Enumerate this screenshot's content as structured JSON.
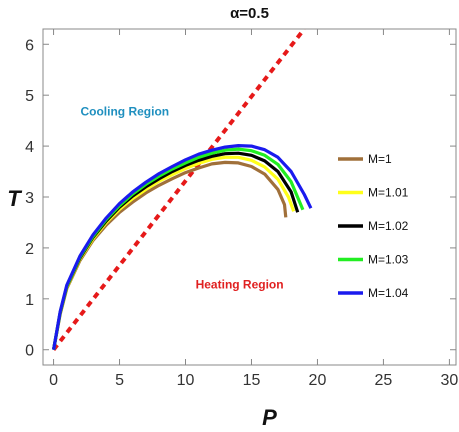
{
  "chart_data": {
    "type": "line",
    "title": "α=0.5",
    "xlabel": "P",
    "ylabel": "T",
    "xlim": [
      -0.8,
      30.5
    ],
    "ylim": [
      -0.3,
      6.3
    ],
    "xticks": [
      0,
      5,
      10,
      15,
      20,
      25,
      30
    ],
    "yticks": [
      0,
      1,
      2,
      3,
      4,
      5,
      6
    ],
    "grid": false,
    "legend_position": "right",
    "annotations": [
      {
        "text": "Cooling Region",
        "color": "#1f8fbf",
        "x": 5.4,
        "y": 4.6
      },
      {
        "text": "Heating Region",
        "color": "#e02020",
        "x": 14.1,
        "y": 1.2
      }
    ],
    "inversion_line": {
      "color": "#e61919",
      "style": "dashed",
      "points": [
        [
          0,
          0
        ],
        [
          19.0,
          6.3
        ]
      ]
    },
    "series": [
      {
        "name": "M=1",
        "color": "#a0703a",
        "points": [
          [
            0,
            0
          ],
          [
            0.5,
            0.7
          ],
          [
            1,
            1.2
          ],
          [
            2,
            1.75
          ],
          [
            3,
            2.15
          ],
          [
            4,
            2.45
          ],
          [
            5,
            2.7
          ],
          [
            6,
            2.9
          ],
          [
            7,
            3.08
          ],
          [
            8,
            3.23
          ],
          [
            9,
            3.36
          ],
          [
            10,
            3.48
          ],
          [
            11,
            3.57
          ],
          [
            12,
            3.65
          ],
          [
            13,
            3.68
          ],
          [
            14,
            3.67
          ],
          [
            15,
            3.6
          ],
          [
            16,
            3.45
          ],
          [
            17,
            3.15
          ],
          [
            17.5,
            2.85
          ],
          [
            17.6,
            2.6
          ]
        ]
      },
      {
        "name": "M=1.01",
        "color": "#ffff1a",
        "points": [
          [
            0,
            0
          ],
          [
            0.5,
            0.72
          ],
          [
            1,
            1.22
          ],
          [
            2,
            1.78
          ],
          [
            3,
            2.18
          ],
          [
            4,
            2.5
          ],
          [
            5,
            2.76
          ],
          [
            6,
            2.97
          ],
          [
            7,
            3.15
          ],
          [
            8,
            3.31
          ],
          [
            9,
            3.44
          ],
          [
            10,
            3.56
          ],
          [
            11,
            3.66
          ],
          [
            12,
            3.74
          ],
          [
            13,
            3.78
          ],
          [
            14,
            3.78
          ],
          [
            15,
            3.72
          ],
          [
            16,
            3.59
          ],
          [
            17,
            3.35
          ],
          [
            17.8,
            3.0
          ],
          [
            18.2,
            2.72
          ]
        ]
      },
      {
        "name": "M=1.02",
        "color": "#000000",
        "points": [
          [
            0,
            0
          ],
          [
            0.5,
            0.73
          ],
          [
            1,
            1.24
          ],
          [
            2,
            1.8
          ],
          [
            3,
            2.21
          ],
          [
            4,
            2.53
          ],
          [
            5,
            2.8
          ],
          [
            6,
            3.02
          ],
          [
            7,
            3.2
          ],
          [
            8,
            3.36
          ],
          [
            9,
            3.5
          ],
          [
            10,
            3.62
          ],
          [
            11,
            3.72
          ],
          [
            12,
            3.8
          ],
          [
            13,
            3.85
          ],
          [
            14,
            3.86
          ],
          [
            15,
            3.82
          ],
          [
            16,
            3.71
          ],
          [
            17,
            3.5
          ],
          [
            18,
            3.1
          ],
          [
            18.5,
            2.7
          ]
        ]
      },
      {
        "name": "M=1.03",
        "color": "#22ee22",
        "points": [
          [
            0,
            0
          ],
          [
            0.5,
            0.74
          ],
          [
            1,
            1.25
          ],
          [
            2,
            1.82
          ],
          [
            3,
            2.23
          ],
          [
            4,
            2.56
          ],
          [
            5,
            2.83
          ],
          [
            6,
            3.06
          ],
          [
            7,
            3.25
          ],
          [
            8,
            3.41
          ],
          [
            9,
            3.55
          ],
          [
            10,
            3.67
          ],
          [
            11,
            3.78
          ],
          [
            12,
            3.86
          ],
          [
            13,
            3.92
          ],
          [
            14,
            3.94
          ],
          [
            15,
            3.91
          ],
          [
            16,
            3.82
          ],
          [
            17,
            3.64
          ],
          [
            18,
            3.3
          ],
          [
            18.9,
            2.75
          ]
        ]
      },
      {
        "name": "M=1.04",
        "color": "#1a1aee",
        "points": [
          [
            0,
            0
          ],
          [
            0.5,
            0.75
          ],
          [
            1,
            1.27
          ],
          [
            2,
            1.84
          ],
          [
            3,
            2.26
          ],
          [
            4,
            2.59
          ],
          [
            5,
            2.87
          ],
          [
            6,
            3.1
          ],
          [
            7,
            3.29
          ],
          [
            8,
            3.46
          ],
          [
            9,
            3.6
          ],
          [
            10,
            3.73
          ],
          [
            11,
            3.84
          ],
          [
            12,
            3.92
          ],
          [
            13,
            3.98
          ],
          [
            14,
            4.01
          ],
          [
            15,
            4.0
          ],
          [
            16,
            3.93
          ],
          [
            17,
            3.78
          ],
          [
            18,
            3.5
          ],
          [
            19,
            3.05
          ],
          [
            19.5,
            2.78
          ]
        ]
      }
    ]
  }
}
